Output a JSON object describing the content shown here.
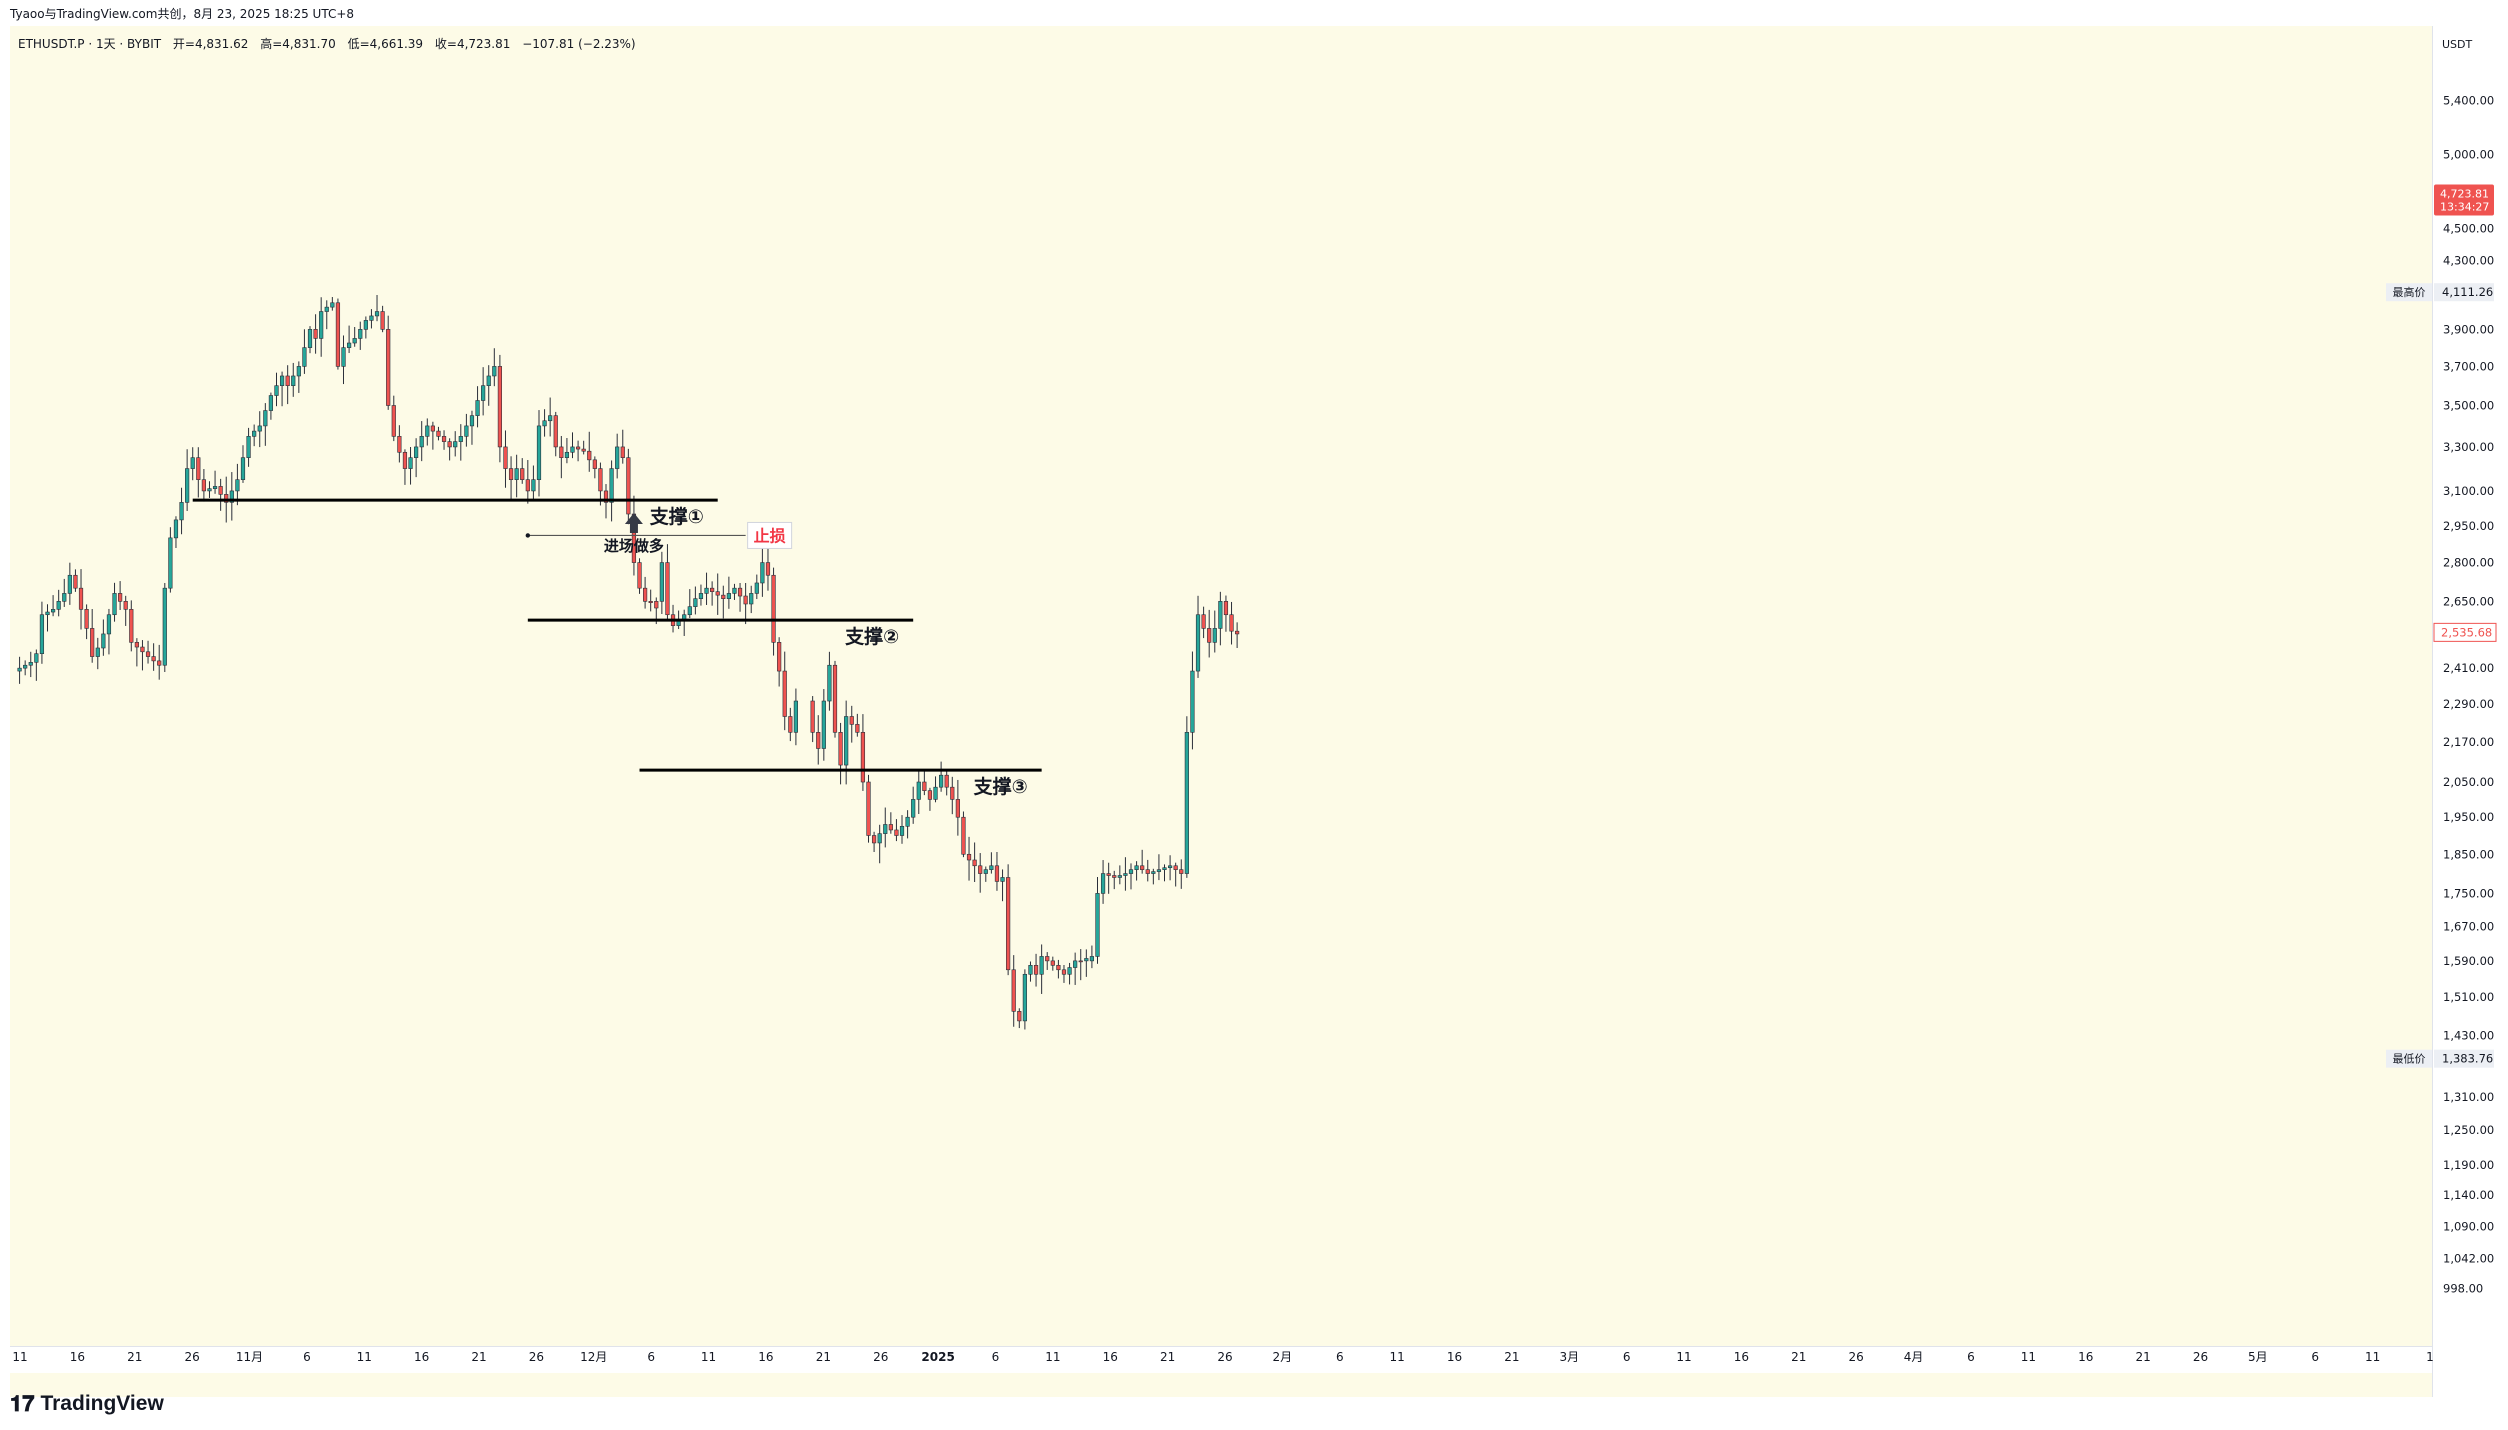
{
  "share_header": "Tyaoo与TradingView.com共创，8月 23, 2025 18:25 UTC+8",
  "legend": {
    "symbol": "ETHUSDT.P · 1天 · BYBIT",
    "open": "开=4,831.62",
    "high": "高=4,831.70",
    "low": "低=4,661.39",
    "close": "收=4,723.81",
    "change": "−107.81 (−2.23%)"
  },
  "footer": {
    "brand": "TradingView",
    "logo_icon": "tradingview-logo-icon"
  },
  "colors": {
    "up": "#26a69a",
    "down": "#ef5350",
    "background": "#fdfbe7",
    "line": "#000000",
    "price_label_bg": "#ef5350",
    "stop_label": "#f23645"
  },
  "chart_data": {
    "type": "candlestick",
    "symbol": "ETHUSDT.P",
    "interval": "1天",
    "exchange": "BYBIT",
    "y_scale": "log",
    "y_range": [
      960,
      5800
    ],
    "currency_label": "USDT",
    "y_ticks": [
      "5,400.00",
      "5,000.00",
      "4,500.00",
      "4,300.00",
      "3,900.00",
      "3,700.00",
      "3,500.00",
      "3,300.00",
      "3,100.00",
      "2,950.00",
      "2,800.00",
      "2,650.00",
      "2,410.00",
      "2,290.00",
      "2,170.00",
      "2,050.00",
      "1,950.00",
      "1,850.00",
      "1,750.00",
      "1,670.00",
      "1,590.00",
      "1,510.00",
      "1,430.00",
      "1,310.00",
      "1,250.00",
      "1,190.00",
      "1,140.00",
      "1,090.00",
      "1,042.00",
      "998.00"
    ],
    "x_ticks": [
      "11",
      "16",
      "21",
      "26",
      "11月",
      "6",
      "11",
      "16",
      "21",
      "26",
      "12月",
      "6",
      "11",
      "16",
      "21",
      "26",
      "2025",
      "6",
      "11",
      "16",
      "21",
      "26",
      "2月",
      "6",
      "11",
      "16",
      "21",
      "3月",
      "6",
      "11",
      "16",
      "21",
      "26",
      "4月",
      "6",
      "11",
      "16",
      "21",
      "26",
      "5月",
      "6",
      "11",
      "1"
    ],
    "price_labels": {
      "last": {
        "value": "4,723.81",
        "countdown": "13:34:27"
      },
      "high": {
        "text": "最高价",
        "value": "4,111.26"
      },
      "low": {
        "text": "最低价",
        "value": "1,383.76"
      },
      "current": {
        "value": "2,535.68"
      }
    },
    "close_series": [
      {
        "start": "2024-10-10",
        "end": "2024-10-31",
        "points": [
          [
            0,
            2400
          ],
          [
            3,
            2430
          ],
          [
            4,
            2460
          ],
          [
            5,
            2600
          ],
          [
            7,
            2620
          ],
          [
            8,
            2650
          ],
          [
            9,
            2680
          ],
          [
            10,
            2750
          ],
          [
            11,
            2700
          ],
          [
            12,
            2620
          ],
          [
            13,
            2550
          ],
          [
            14,
            2450
          ],
          [
            15,
            2480
          ],
          [
            16,
            2530
          ],
          [
            17,
            2600
          ],
          [
            18,
            2680
          ],
          [
            20,
            2620
          ],
          [
            21,
            2500
          ]
        ]
      },
      {
        "start": "2024-10-31",
        "end": "2024-12-31",
        "points": [
          [
            0,
            2500
          ],
          [
            3,
            2450
          ],
          [
            5,
            2420
          ],
          [
            6,
            2700
          ],
          [
            7,
            2900
          ],
          [
            9,
            3050
          ],
          [
            10,
            3200
          ],
          [
            11,
            3250
          ],
          [
            12,
            3150
          ],
          [
            13,
            3100
          ],
          [
            15,
            3120
          ],
          [
            17,
            3050
          ],
          [
            19,
            3150
          ],
          [
            21,
            3350
          ],
          [
            23,
            3400
          ],
          [
            25,
            3550
          ],
          [
            27,
            3650
          ],
          [
            28,
            3600
          ],
          [
            30,
            3700
          ],
          [
            32,
            3900
          ],
          [
            33,
            3850
          ],
          [
            34,
            4000
          ],
          [
            36,
            4050
          ],
          [
            37,
            3700
          ],
          [
            38,
            3800
          ],
          [
            40,
            3850
          ],
          [
            41,
            3900
          ],
          [
            42,
            3950
          ],
          [
            44,
            4000
          ],
          [
            45,
            3900
          ],
          [
            46,
            3500
          ],
          [
            47,
            3350
          ],
          [
            49,
            3200
          ],
          [
            51,
            3300
          ],
          [
            53,
            3400
          ],
          [
            55,
            3350
          ],
          [
            57,
            3300
          ],
          [
            59,
            3350
          ],
          [
            60,
            3400
          ],
          [
            61,
            3450
          ]
        ]
      },
      {
        "start": "2024-12-31",
        "end": "2025-02-01",
        "points": [
          [
            0,
            3450
          ],
          [
            2,
            3600
          ],
          [
            4,
            3700
          ],
          [
            5,
            3300
          ],
          [
            6,
            3200
          ],
          [
            7,
            3150
          ],
          [
            8,
            3200
          ],
          [
            10,
            3100
          ],
          [
            11,
            3150
          ],
          [
            12,
            3400
          ],
          [
            14,
            3450
          ],
          [
            15,
            3300
          ],
          [
            16,
            3250
          ],
          [
            18,
            3300
          ],
          [
            20,
            3280
          ],
          [
            22,
            3200
          ],
          [
            23,
            3100
          ],
          [
            24,
            3050
          ],
          [
            25,
            3200
          ],
          [
            26,
            3300
          ],
          [
            27,
            3250
          ],
          [
            28,
            3000
          ],
          [
            29,
            2800
          ],
          [
            30,
            2700
          ],
          [
            31,
            2650
          ]
        ]
      },
      {
        "start": "2025-02-01",
        "end": "2025-03-01",
        "points": [
          [
            0,
            2650
          ],
          [
            1,
            2650
          ],
          [
            2,
            2800
          ],
          [
            3,
            2600
          ],
          [
            4,
            2560
          ],
          [
            6,
            2600
          ],
          [
            8,
            2660
          ],
          [
            10,
            2700
          ],
          [
            13,
            2660
          ],
          [
            15,
            2700
          ],
          [
            17,
            2640
          ],
          [
            19,
            2720
          ],
          [
            20,
            2800
          ],
          [
            21,
            2750
          ],
          [
            22,
            2500
          ],
          [
            23,
            2400
          ],
          [
            24,
            2250
          ],
          [
            25,
            2200
          ],
          [
            26,
            2300
          ]
        ]
      },
      {
        "start": "2025-03-01",
        "end": "2025-04-01",
        "points": [
          [
            0,
            2300
          ],
          [
            1,
            2200
          ],
          [
            2,
            2150
          ],
          [
            3,
            2300
          ],
          [
            4,
            2420
          ],
          [
            5,
            2200
          ],
          [
            6,
            2100
          ],
          [
            7,
            2250
          ],
          [
            9,
            2200
          ],
          [
            10,
            2050
          ],
          [
            11,
            1900
          ],
          [
            12,
            1880
          ],
          [
            14,
            1930
          ],
          [
            16,
            1900
          ],
          [
            18,
            1950
          ],
          [
            20,
            2050
          ],
          [
            22,
            2000
          ],
          [
            24,
            2070
          ],
          [
            26,
            2000
          ],
          [
            27,
            1950
          ],
          [
            28,
            1850
          ],
          [
            30,
            1820
          ],
          [
            31,
            1800
          ]
        ]
      },
      {
        "start": "2025-04-01",
        "end": "2025-05-01",
        "points": [
          [
            0,
            1800
          ],
          [
            2,
            1820
          ],
          [
            3,
            1780
          ],
          [
            4,
            1790
          ],
          [
            5,
            1570
          ],
          [
            6,
            1480
          ],
          [
            7,
            1460
          ],
          [
            8,
            1560
          ],
          [
            9,
            1580
          ],
          [
            10,
            1560
          ],
          [
            11,
            1600
          ],
          [
            13,
            1580
          ],
          [
            15,
            1560
          ],
          [
            17,
            1590
          ],
          [
            19,
            1590
          ],
          [
            20,
            1600
          ],
          [
            21,
            1750
          ],
          [
            22,
            1800
          ],
          [
            24,
            1790
          ],
          [
            26,
            1800
          ],
          [
            28,
            1820
          ],
          [
            30,
            1800
          ]
        ]
      },
      {
        "start": "2025-05-01",
        "end": "2025-05-20",
        "points": [
          [
            0,
            1800
          ],
          [
            2,
            1810
          ],
          [
            4,
            1820
          ],
          [
            6,
            1800
          ],
          [
            7,
            2200
          ],
          [
            8,
            2400
          ],
          [
            9,
            2600
          ],
          [
            10,
            2550
          ],
          [
            11,
            2500
          ],
          [
            12,
            2550
          ],
          [
            13,
            2650
          ],
          [
            14,
            2600
          ],
          [
            15,
            2540
          ],
          [
            16,
            2530
          ]
        ]
      }
    ],
    "annotations": {
      "support_1": {
        "price": 3060,
        "from": "2024-11-11",
        "to": "2025-02-13",
        "label": "支撑①"
      },
      "support_2": {
        "price": 2580,
        "from": "2025-01-10",
        "to": "2025-03-20",
        "label": "支撑②"
      },
      "support_3": {
        "price": 2085,
        "from": "2025-01-30",
        "to": "2025-04-12",
        "label": "支撑③"
      },
      "stop_loss": {
        "price": 2910,
        "from": "2025-01-10",
        "to": "2025-02-18",
        "label": "止损"
      },
      "entry_long": {
        "date": "2025-01-29",
        "label": "进场做多"
      }
    }
  }
}
